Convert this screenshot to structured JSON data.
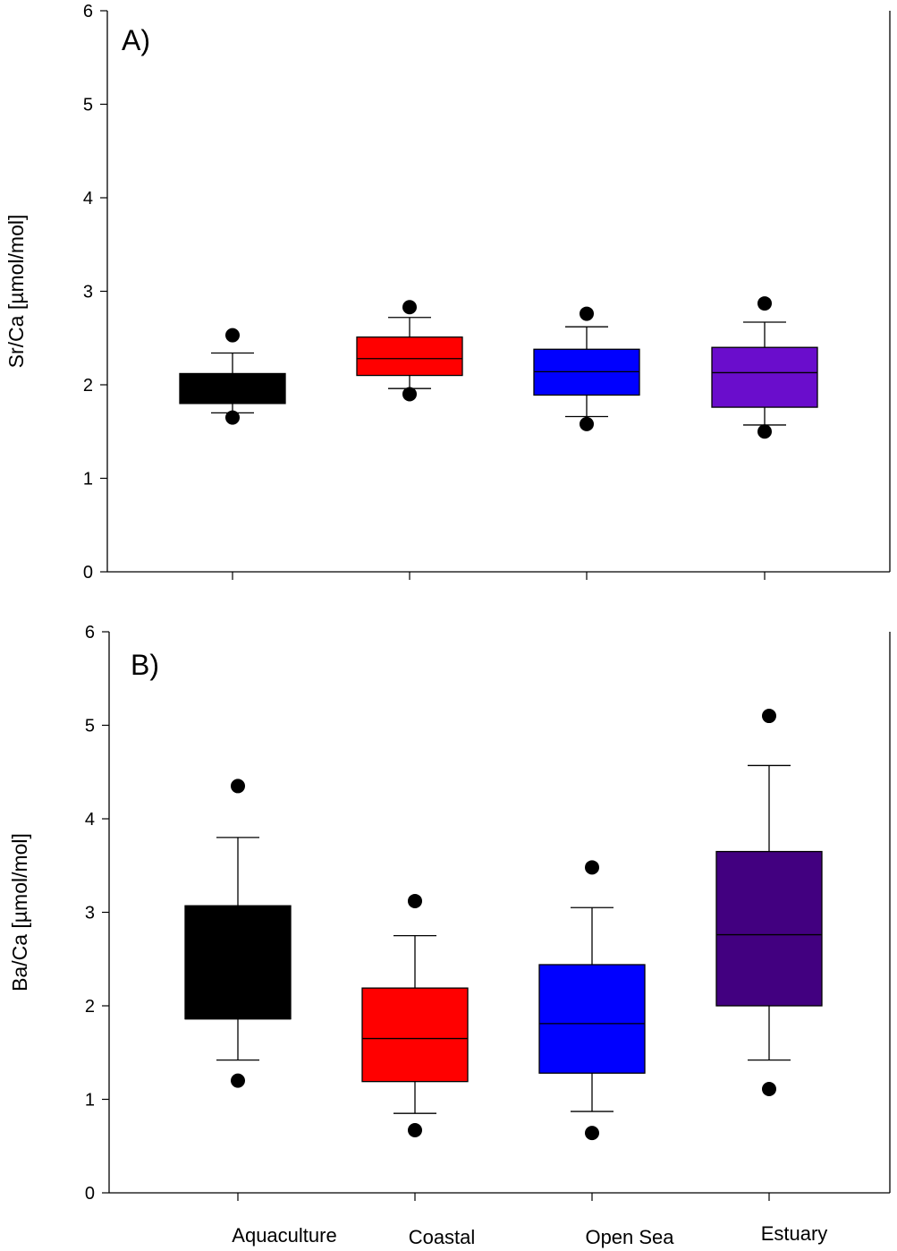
{
  "chart_data": [
    {
      "type": "box",
      "panel_label": "A)",
      "ylabel": "Sr/Ca [µmol/mol]",
      "ylim": [
        0,
        6
      ],
      "yticks": [
        "0",
        "1",
        "2",
        "3",
        "4",
        "5",
        "6"
      ],
      "categories": [
        "Aquaculture",
        "Coastal",
        "Open Sea",
        "Estuary"
      ],
      "show_category_labels": false,
      "boxes": [
        {
          "category": "Aquaculture",
          "color": "#000000",
          "q1": 1.8,
          "median": 1.8,
          "q3": 2.12,
          "whisker_low": 1.7,
          "whisker_high": 2.34,
          "outliers": [
            1.65,
            2.53
          ]
        },
        {
          "category": "Coastal",
          "color": "#ff0000",
          "q1": 2.1,
          "median": 2.28,
          "q3": 2.51,
          "whisker_low": 1.96,
          "whisker_high": 2.72,
          "outliers": [
            1.9,
            2.83
          ]
        },
        {
          "category": "Open Sea",
          "color": "#0000ff",
          "q1": 1.89,
          "median": 2.14,
          "q3": 2.38,
          "whisker_low": 1.66,
          "whisker_high": 2.62,
          "outliers": [
            1.58,
            2.76
          ]
        },
        {
          "category": "Estuary",
          "color": "#6a0dcc",
          "q1": 1.76,
          "median": 2.13,
          "q3": 2.4,
          "whisker_low": 1.57,
          "whisker_high": 2.67,
          "outliers": [
            1.5,
            2.87
          ]
        }
      ]
    },
    {
      "type": "box",
      "panel_label": "B)",
      "ylabel": "Ba/Ca [µmol/mol]",
      "ylim": [
        0,
        6
      ],
      "yticks": [
        "0",
        "1",
        "2",
        "3",
        "4",
        "5",
        "6"
      ],
      "categories": [
        "Aquaculture",
        "Coastal",
        "Open Sea",
        "Estuary"
      ],
      "show_category_labels": true,
      "boxes": [
        {
          "category": "Aquaculture",
          "color": "#000000",
          "q1": 1.86,
          "median": 1.86,
          "q3": 3.07,
          "whisker_low": 1.42,
          "whisker_high": 3.8,
          "outliers": [
            1.2,
            4.35
          ]
        },
        {
          "category": "Coastal",
          "color": "#ff0000",
          "q1": 1.19,
          "median": 1.65,
          "q3": 2.19,
          "whisker_low": 0.85,
          "whisker_high": 2.75,
          "outliers": [
            0.67,
            3.12
          ]
        },
        {
          "category": "Open Sea",
          "color": "#0000ff",
          "q1": 1.28,
          "median": 1.81,
          "q3": 2.44,
          "whisker_low": 0.87,
          "whisker_high": 3.05,
          "outliers": [
            0.64,
            3.48
          ]
        },
        {
          "category": "Estuary",
          "color": "#420080",
          "q1": 2.0,
          "median": 2.76,
          "q3": 3.65,
          "whisker_low": 1.42,
          "whisker_high": 4.57,
          "outliers": [
            1.11,
            5.1
          ]
        }
      ]
    }
  ]
}
